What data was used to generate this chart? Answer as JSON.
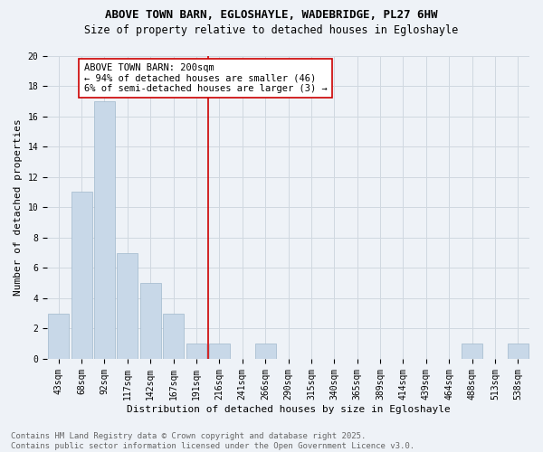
{
  "title_line1": "ABOVE TOWN BARN, EGLOSHAYLE, WADEBRIDGE, PL27 6HW",
  "title_line2": "Size of property relative to detached houses in Egloshayle",
  "xlabel": "Distribution of detached houses by size in Egloshayle",
  "ylabel": "Number of detached properties",
  "bar_labels": [
    "43sqm",
    "68sqm",
    "92sqm",
    "117sqm",
    "142sqm",
    "167sqm",
    "191sqm",
    "216sqm",
    "241sqm",
    "266sqm",
    "290sqm",
    "315sqm",
    "340sqm",
    "365sqm",
    "389sqm",
    "414sqm",
    "439sqm",
    "464sqm",
    "488sqm",
    "513sqm",
    "538sqm"
  ],
  "bar_values": [
    3,
    11,
    17,
    7,
    5,
    3,
    1,
    1,
    0,
    1,
    0,
    0,
    0,
    0,
    0,
    0,
    0,
    0,
    1,
    0,
    1
  ],
  "bar_color": "#c8d8e8",
  "bar_edge_color": "#a0b8cc",
  "annotation_text": "ABOVE TOWN BARN: 200sqm\n← 94% of detached houses are smaller (46)\n6% of semi-detached houses are larger (3) →",
  "annotation_box_color": "#ffffff",
  "annotation_box_edge": "#cc0000",
  "vline_x": 6.5,
  "vline_color": "#cc0000",
  "ylim": [
    0,
    20
  ],
  "yticks": [
    0,
    2,
    4,
    6,
    8,
    10,
    12,
    14,
    16,
    18,
    20
  ],
  "grid_color": "#d0d8e0",
  "background_color": "#eef2f7",
  "footer_text": "Contains HM Land Registry data © Crown copyright and database right 2025.\nContains public sector information licensed under the Open Government Licence v3.0.",
  "title_fontsize": 9,
  "subtitle_fontsize": 8.5,
  "axis_label_fontsize": 8,
  "tick_fontsize": 7,
  "annotation_fontsize": 7.5,
  "footer_fontsize": 6.5
}
